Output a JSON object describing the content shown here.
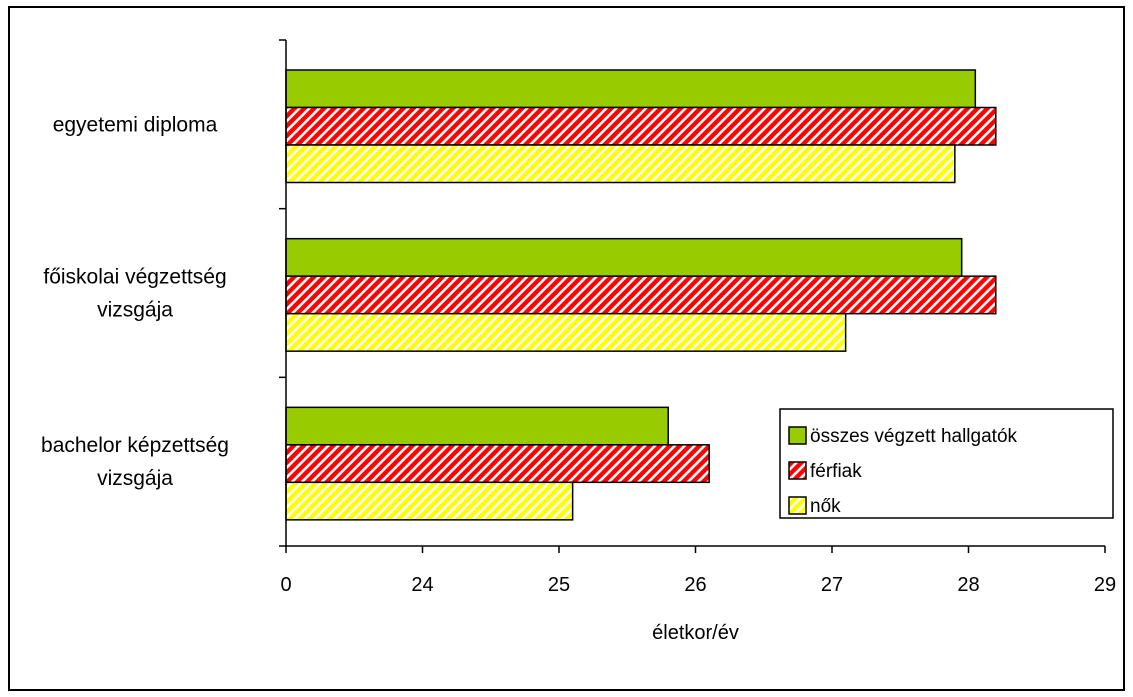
{
  "chart_data": {
    "type": "bar",
    "orientation": "horizontal",
    "categories": [
      [
        "egyetemi diploma"
      ],
      [
        "főiskolai végzettség",
        "vizsgája"
      ],
      [
        "bachelor képzettség",
        "vizsgája"
      ]
    ],
    "series": [
      {
        "name": "összes végzett hallgatók",
        "values": [
          28.05,
          27.95,
          25.8
        ],
        "color": "#99cc00",
        "pattern": "solid"
      },
      {
        "name": "férfiak",
        "values": [
          28.2,
          28.2,
          26.1
        ],
        "color": "#ff0000",
        "pattern": "diagonal-stripes"
      },
      {
        "name": "nők",
        "values": [
          27.9,
          27.1,
          25.1
        ],
        "color": "#ffff00",
        "pattern": "diagonal-stripes"
      }
    ],
    "x_ticks": [
      "0",
      "24",
      "25",
      "26",
      "27",
      "28",
      "29"
    ],
    "x_tick_values": [
      23,
      24,
      25,
      26,
      27,
      28,
      29
    ],
    "xlim": [
      23,
      29
    ],
    "xlabel": "életkor/év",
    "title": "",
    "ylabel": "",
    "grid": false,
    "legend": {
      "position": "bottom-right",
      "entries": [
        "összes végzett hallgatók",
        "férfiak",
        "nők"
      ]
    }
  }
}
